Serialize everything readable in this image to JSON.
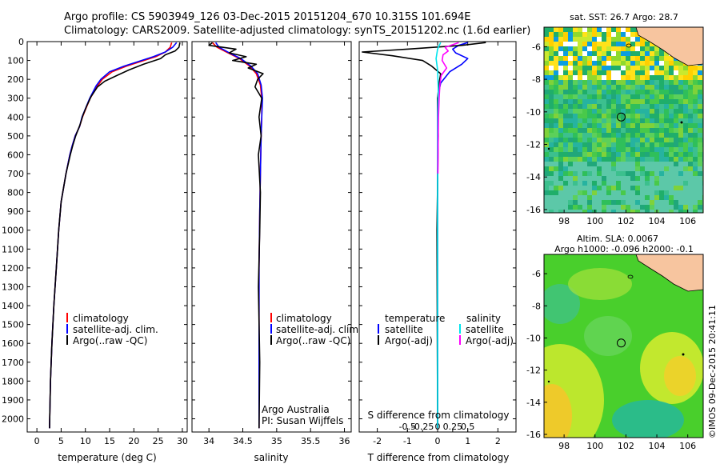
{
  "header": {
    "line1": "Argo profile: CS 5903949_126 03-Dec-2015 20151204_670 10.315S 101.694E",
    "line2": "Climatology: CARS2009. Satellite-adjusted climatology: synTS_20151202.nc (1.6d earlier)"
  },
  "colors": {
    "climatology": "#ff0000",
    "satellite": "#0000ff",
    "argo": "#000000",
    "sal_satellite": "#00e5ee",
    "sal_argo": "#ff00ff"
  },
  "chart_data": [
    {
      "type": "line",
      "id": "temperature",
      "xlabel": "temperature (deg C)",
      "ylabel": "",
      "xlim": [
        -2,
        31
      ],
      "ylim": [
        2070,
        0
      ],
      "xticks": [
        0,
        5,
        10,
        15,
        20,
        25,
        30
      ],
      "yticks": [
        0,
        100,
        200,
        300,
        400,
        500,
        600,
        700,
        800,
        900,
        1000,
        1100,
        1200,
        1300,
        1400,
        1500,
        1600,
        1700,
        1800,
        1900,
        2000
      ],
      "legend": [
        "climatology",
        "satellite-adj. clim.",
        "Argo(..raw -QC)"
      ],
      "series": [
        {
          "name": "climatology",
          "color": "#ff0000",
          "x": [
            27.8,
            27.5,
            26.5,
            24.5,
            21.5,
            18.5,
            15.5,
            13.5,
            12.5,
            11.0,
            10.2,
            9.4,
            8.8,
            7.9,
            7.3,
            6.8,
            6.0,
            5.0,
            4.5,
            4.0,
            3.5,
            3.1,
            2.8,
            2.6
          ],
          "y": [
            5,
            30,
            55,
            80,
            105,
            130,
            160,
            200,
            235,
            300,
            350,
            400,
            450,
            500,
            550,
            600,
            700,
            850,
            1000,
            1200,
            1400,
            1600,
            1800,
            2050
          ]
        },
        {
          "name": "satellite-adj. clim.",
          "color": "#0000ff",
          "x": [
            28.8,
            28.0,
            26.5,
            24.0,
            21.0,
            18.0,
            15.0,
            13.2,
            12.2,
            10.9,
            10.1,
            9.3,
            8.8,
            7.9,
            7.3,
            6.8,
            6.0,
            5.0,
            4.5,
            4.0,
            3.5,
            3.1,
            2.8,
            2.6
          ],
          "y": [
            5,
            30,
            55,
            80,
            105,
            130,
            160,
            200,
            235,
            300,
            350,
            400,
            450,
            500,
            550,
            600,
            700,
            850,
            1000,
            1200,
            1400,
            1600,
            1800,
            2050
          ]
        },
        {
          "name": "Argo(..raw -QC)",
          "color": "#000000",
          "x": [
            29.5,
            29.3,
            28.5,
            26.5,
            25.5,
            22.0,
            19.0,
            16.5,
            14.0,
            12.5,
            11.2,
            10.3,
            9.5,
            8.9,
            8.0,
            7.4,
            6.9,
            6.0,
            5.0,
            4.5,
            4.0,
            3.5,
            3.1,
            2.8,
            2.6
          ],
          "y": [
            5,
            30,
            50,
            70,
            90,
            120,
            150,
            180,
            210,
            240,
            290,
            340,
            390,
            440,
            500,
            550,
            600,
            700,
            850,
            1000,
            1200,
            1400,
            1600,
            1800,
            2050
          ]
        }
      ]
    },
    {
      "type": "line",
      "id": "salinity",
      "xlabel": "salinity",
      "xlim": [
        33.75,
        36.1
      ],
      "ylim": [
        2070,
        0
      ],
      "xticks": [
        34,
        34.5,
        35,
        35.5,
        36
      ],
      "legend": [
        "climatology",
        "satellite-adj. clim.",
        "Argo(..raw -QC)"
      ],
      "annotation": [
        "Argo Australia",
        "PI: Susan Wijffels"
      ],
      "series": [
        {
          "name": "climatology",
          "color": "#ff0000",
          "x": [
            34.05,
            34.12,
            34.28,
            34.45,
            34.6,
            34.7,
            34.76,
            34.78,
            34.78,
            34.77,
            34.76,
            34.75,
            34.74,
            34.74,
            34.74
          ],
          "y": [
            5,
            30,
            60,
            90,
            130,
            170,
            230,
            300,
            400,
            500,
            700,
            900,
            1200,
            1600,
            2050
          ]
        },
        {
          "name": "satellite-adj. clim.",
          "color": "#0000ff",
          "x": [
            34.1,
            34.15,
            34.3,
            34.47,
            34.62,
            34.72,
            34.77,
            34.79,
            34.78,
            34.77,
            34.76,
            34.75,
            34.74,
            34.74,
            34.74
          ],
          "y": [
            5,
            30,
            60,
            90,
            130,
            170,
            230,
            300,
            400,
            500,
            700,
            900,
            1200,
            1600,
            2050
          ]
        },
        {
          "name": "Argo(..raw -QC)",
          "color": "#000000",
          "x": [
            34.05,
            34.0,
            34.4,
            34.3,
            34.55,
            34.35,
            34.7,
            34.58,
            34.8,
            34.72,
            34.68,
            34.78,
            34.74,
            34.77,
            34.73,
            34.76,
            34.75,
            34.73,
            34.75,
            34.74
          ],
          "y": [
            5,
            20,
            40,
            60,
            80,
            100,
            120,
            140,
            170,
            200,
            240,
            300,
            400,
            500,
            600,
            800,
            1000,
            1300,
            1700,
            2050
          ]
        }
      ]
    },
    {
      "type": "line",
      "id": "difference",
      "xlabel": "T difference from climatology",
      "xlabel_top": "S difference from climatology",
      "xlim": [
        -2.6,
        2.6
      ],
      "ylim": [
        2070,
        0
      ],
      "xticks": [
        -2,
        -1,
        0,
        1,
        2
      ],
      "xticks_top": [
        -0.5,
        -0.25,
        0,
        0.25,
        0.5
      ],
      "xticklabels_top": [
        "-0.5",
        "-0.25",
        "0",
        "0.25",
        "0.5"
      ],
      "legend": {
        "temperature": "temperature",
        "salinity": "salinity",
        "t_sat": "satellite",
        "t_argo": "Argo(-adj)",
        "s_sat": "satellite",
        "s_argo": "Argo(-adj)"
      },
      "series": [
        {
          "name": "T satellite",
          "color": "#0000ff",
          "x": [
            1.0,
            0.7,
            0.5,
            0.6,
            1.0,
            0.8,
            0.4,
            0.1,
            0.0,
            0.0,
            0.0
          ],
          "y": [
            5,
            20,
            40,
            60,
            90,
            120,
            160,
            220,
            300,
            500,
            2050
          ]
        },
        {
          "name": "T Argo(-adj)",
          "color": "#000000",
          "x": [
            1.6,
            0.8,
            -1.0,
            -2.5,
            -1.5,
            -0.5,
            -0.2,
            0.1,
            0.05,
            0.0,
            0.02,
            -0.02,
            0.0
          ],
          "y": [
            5,
            20,
            40,
            55,
            75,
            100,
            130,
            170,
            220,
            300,
            500,
            1000,
            2050
          ]
        },
        {
          "name": "S satellite",
          "color": "#00e5ee",
          "x": [
            0.1,
            0.0,
            -0.05,
            0.0,
            0.02,
            0.01,
            0.0,
            0.0
          ],
          "y": [
            5,
            40,
            90,
            150,
            250,
            400,
            800,
            2050
          ]
        },
        {
          "name": "S Argo(-adj)",
          "color": "#ff00ff",
          "x": [
            0.7,
            0.25,
            0.35,
            0.18,
            0.15,
            0.3,
            0.12,
            0.08,
            0.05,
            0.03,
            0.02,
            0.01
          ],
          "y": [
            5,
            30,
            50,
            70,
            100,
            140,
            180,
            220,
            300,
            400,
            500,
            700
          ]
        }
      ]
    },
    {
      "type": "heatmap",
      "id": "sst_map",
      "title": "sat. SST: 26.7  Argo: 28.7",
      "xlim": [
        96.7,
        107
      ],
      "ylim": [
        -16.2,
        -4.8
      ],
      "xticks": [
        98,
        100,
        102,
        104,
        106
      ],
      "yticks": [
        -6,
        -8,
        -10,
        -12,
        -14,
        -16
      ],
      "argo_position": [
        101.694,
        -10.315
      ]
    },
    {
      "type": "heatmap",
      "id": "sla_map",
      "title_line1": "Altim. SLA: 0.0067",
      "title_line2": "Argo h1000: -0.096  h2000: -0.1",
      "xlim": [
        96.7,
        107
      ],
      "ylim": [
        -16.2,
        -4.8
      ],
      "xticks": [
        98,
        100,
        102,
        104,
        106
      ],
      "yticks": [
        -6,
        -8,
        -10,
        -12,
        -14,
        -16
      ],
      "argo_position": [
        101.694,
        -10.315
      ]
    }
  ],
  "footer": {
    "stamp": "©IMOS 09-Dec-2015 20:41:11"
  }
}
